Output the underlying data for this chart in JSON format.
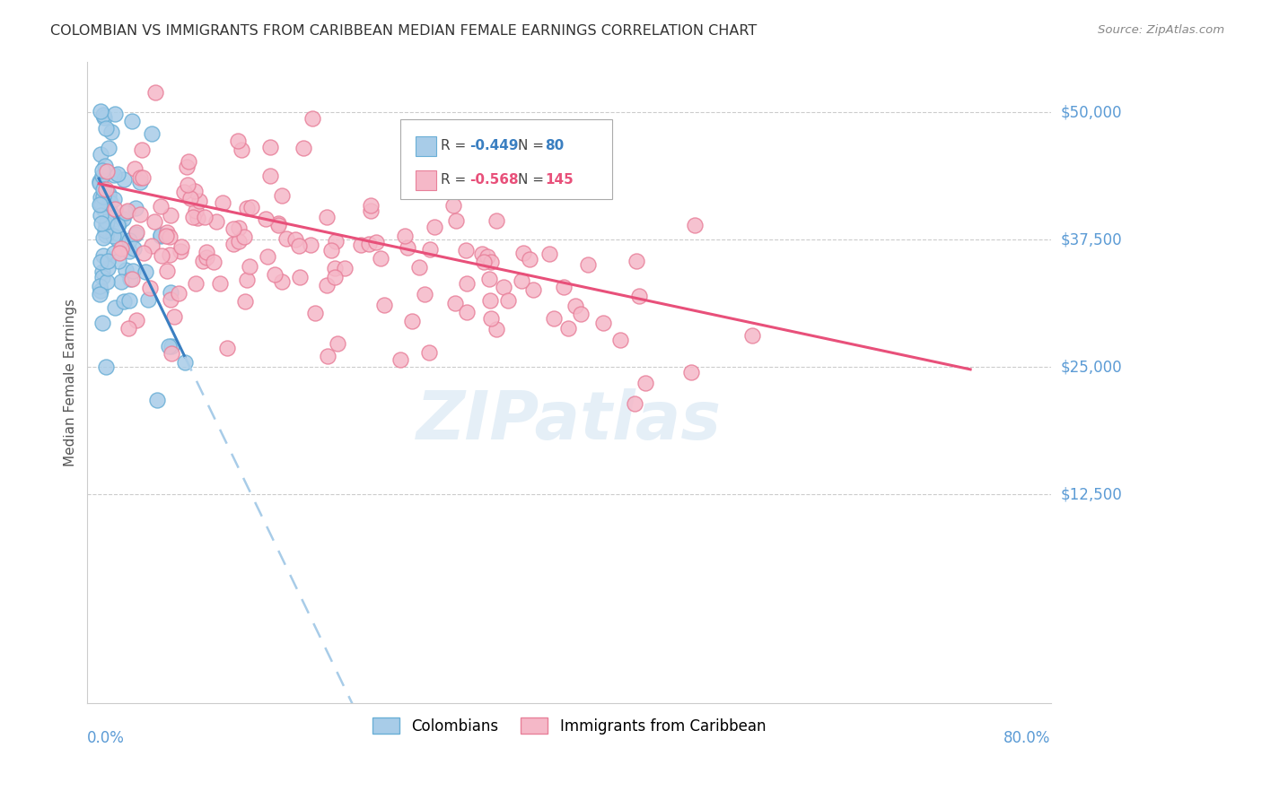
{
  "title": "COLOMBIAN VS IMMIGRANTS FROM CARIBBEAN MEDIAN FEMALE EARNINGS CORRELATION CHART",
  "source": "Source: ZipAtlas.com",
  "ylabel": "Median Female Earnings",
  "ytick_labels": [
    "$50,000",
    "$37,500",
    "$25,000",
    "$12,500"
  ],
  "ytick_values": [
    50000,
    37500,
    25000,
    12500
  ],
  "ymax": 55000,
  "ymin": -8000,
  "xmin": -0.01,
  "xmax": 0.83,
  "watermark": "ZIPatlas",
  "blue_color": "#a8cce8",
  "blue_edge_color": "#6aafd6",
  "pink_color": "#f5b8c8",
  "pink_edge_color": "#e8809a",
  "blue_line_color": "#3a7fc1",
  "blue_dash_color": "#a8cce8",
  "pink_line_color": "#e8507a",
  "title_color": "#333333",
  "axis_label_color": "#5b9bd5",
  "grid_color": "#cccccc",
  "bg_color": "#ffffff",
  "legend_R_blue": "-0.449",
  "legend_N_blue": "80",
  "legend_R_pink": "-0.568",
  "legend_N_pink": "145",
  "col_seed": 42,
  "car_seed": 99
}
